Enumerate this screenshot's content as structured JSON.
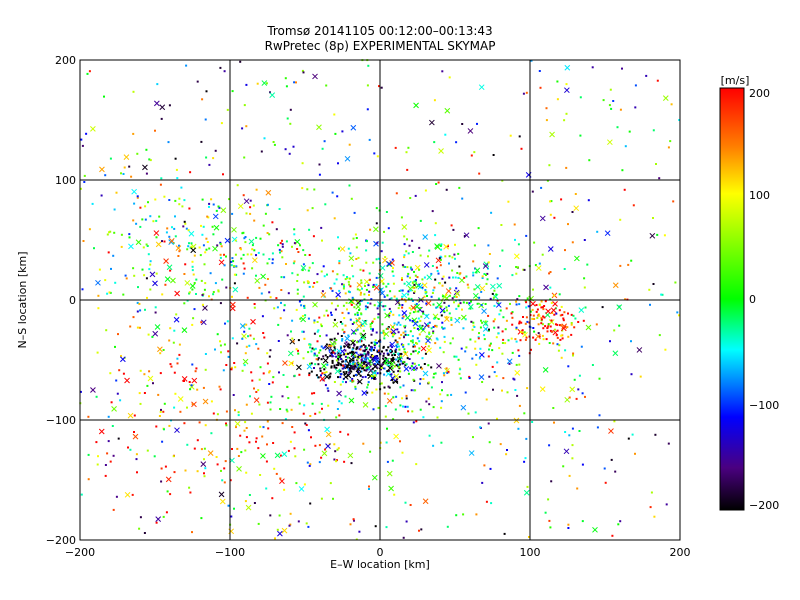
{
  "chart_data": {
    "type": "scatter",
    "title": "Tromsø 20141105 00:12:00–00:13:43",
    "subtitle": "RwPretec (8p) EXPERIMENTAL SKYMAP",
    "xlabel": "E–W location [km]",
    "ylabel": "N–S location [km]",
    "xlim": [
      -200,
      200
    ],
    "ylim": [
      -200,
      200
    ],
    "xticks": [
      "−200",
      "−100",
      "0",
      "100",
      "200"
    ],
    "yticks": [
      "−200",
      "−100",
      "0",
      "100",
      "200"
    ],
    "grid": true,
    "colorbar": {
      "unit_label": "[m/s]",
      "range": [
        -200,
        200
      ],
      "ticks": [
        "200",
        "100",
        "0",
        "−100",
        "−200"
      ],
      "colormap": "rainbow: black (-200) → purple → blue → cyan → green (0) → yellow → orange → red (200)"
    },
    "marker_styles": [
      "small dot",
      "cross (x)"
    ],
    "point_clusters": [
      {
        "region": "dense core",
        "x_center": -10,
        "y_center": -50,
        "spread_x": 18,
        "spread_y": 10,
        "velocity_mean": -190
      },
      {
        "region": "central cloud",
        "x_center": 10,
        "y_center": -10,
        "spread_x": 45,
        "spread_y": 35,
        "velocity_mean": 0
      },
      {
        "region": "eastern cluster",
        "x_center": 110,
        "y_center": -20,
        "spread_x": 12,
        "spread_y": 10,
        "velocity_mean": 200
      },
      {
        "region": "north-west",
        "x_center": -120,
        "y_center": 40,
        "spread_x": 40,
        "spread_y": 35,
        "velocity_mean": 30
      },
      {
        "region": "south-west",
        "x_center": -100,
        "y_center": -100,
        "spread_x": 45,
        "spread_y": 45,
        "velocity_mean": 150
      },
      {
        "region": "background",
        "x_center": 0,
        "y_center": 0,
        "spread_x": 200,
        "spread_y": 200,
        "velocity_mean": 0
      }
    ]
  }
}
